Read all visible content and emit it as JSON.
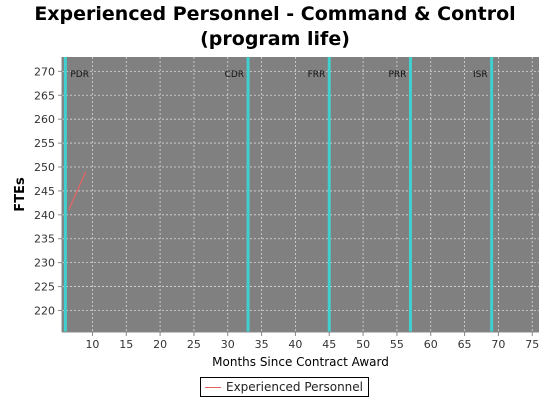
{
  "chart_data": {
    "type": "line",
    "title_lines": [
      "Experienced Personnel - Command & Control",
      "(program life)"
    ],
    "xlabel": "Months Since Contract Award",
    "ylabel": "FTEs",
    "xlim": [
      5.5,
      76
    ],
    "ylim": [
      215.5,
      273
    ],
    "x_ticks": [
      10,
      15,
      20,
      25,
      30,
      35,
      40,
      45,
      50,
      55,
      60,
      65,
      70,
      75
    ],
    "y_ticks": [
      220,
      225,
      230,
      235,
      240,
      245,
      250,
      255,
      260,
      265,
      270
    ],
    "grid": true,
    "plot_background": "#808080",
    "milestones": [
      {
        "label": "PDR",
        "x": 6
      },
      {
        "label": "CDR",
        "x": 33
      },
      {
        "label": "FRR",
        "x": 45
      },
      {
        "label": "PRR",
        "x": 57
      },
      {
        "label": "ISR",
        "x": 69
      }
    ],
    "milestone_color": "#40d0d0",
    "series": [
      {
        "name": "Experienced Personnel",
        "color": "#e06666",
        "x": [
          6.5,
          7,
          7.5,
          8,
          8.5,
          9
        ],
        "y": [
          241,
          242.6,
          244.2,
          245.8,
          247.4,
          249
        ]
      }
    ],
    "legend_position": "bottom-center"
  }
}
